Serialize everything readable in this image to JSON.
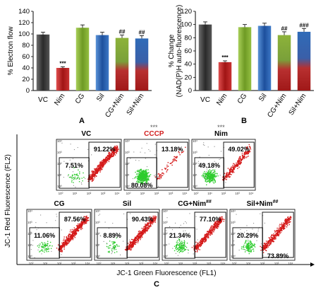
{
  "chart_data": [
    {
      "panel": "A",
      "type": "bar",
      "ylabel": "% Electron flow",
      "ylim": [
        0,
        140
      ],
      "yticks": [
        0,
        20,
        40,
        60,
        80,
        100,
        120,
        140
      ],
      "categories": [
        "VC",
        "Nim",
        "CG",
        "Sil",
        "CG+Nim",
        "Sil+Nim"
      ],
      "values": [
        99,
        40,
        111,
        98,
        93,
        92
      ],
      "errors": [
        4,
        2,
        5,
        5,
        5,
        5
      ],
      "annotations": [
        "",
        "***",
        "",
        "",
        "##",
        "##"
      ],
      "colors": [
        "#3f3f3f",
        "#b22222",
        "#8db33a",
        "#2f6bb8",
        "gradient-green-red",
        "gradient-blue-red"
      ]
    },
    {
      "panel": "B",
      "type": "bar",
      "ylabel": "% Change (NAD(P)H auto-fluorescence)",
      "ylim": [
        0,
        120
      ],
      "yticks": [
        0,
        20,
        40,
        60,
        80,
        100,
        120
      ],
      "categories": [
        "VC",
        "Nim",
        "CG",
        "Sil",
        "CG+Nim",
        "Sil+Nim"
      ],
      "values": [
        100,
        43,
        96,
        98,
        84,
        89
      ],
      "errors": [
        4,
        2,
        4,
        4,
        5,
        5
      ],
      "annotations": [
        "",
        "***",
        "",
        "",
        "##",
        "###"
      ],
      "colors": [
        "#3f3f3f",
        "#b22222",
        "#8db33a",
        "#2f6bb8",
        "gradient-green-red",
        "gradient-blue-red"
      ]
    },
    {
      "panel": "C",
      "type": "scatter",
      "xlabel": "JC-1 Green Fluorescence (FL1)",
      "ylabel": "JC-1 Red Fluorescence (FL2)",
      "tick_labels": [
        "10⁰",
        "10¹",
        "10²",
        "10³",
        "10⁴"
      ],
      "plots": [
        {
          "label": "VC",
          "label_mark": "",
          "stars": "",
          "red_pct": "91.22%",
          "green_pct": "7.51%",
          "red_gate": "upper-right",
          "green_gate": "lower-left",
          "label_color": "#000000"
        },
        {
          "label": "CCCP",
          "label_mark": "",
          "stars": "***",
          "red_pct": "13.18%",
          "green_pct": "80.08%",
          "red_gate": "upper-right",
          "green_gate": "lower-left",
          "label_color": "#d21e1e"
        },
        {
          "label": "Nim",
          "label_mark": "",
          "stars": "***",
          "red_pct": "49.02%",
          "green_pct": "49.18%",
          "red_gate": "upper-right",
          "green_gate": "lower-left",
          "label_color": "#000000"
        },
        {
          "label": "CG",
          "label_mark": "",
          "stars": "",
          "red_pct": "87.56%",
          "green_pct": "11.06%",
          "red_gate": "upper-right",
          "green_gate": "lower-left",
          "label_color": "#000000"
        },
        {
          "label": "Sil",
          "label_mark": "",
          "stars": "",
          "red_pct": "90.43%",
          "green_pct": "8.89%",
          "red_gate": "upper-right",
          "green_gate": "lower-left",
          "label_color": "#000000"
        },
        {
          "label": "CG+Nim",
          "label_mark": "##",
          "stars": "",
          "red_pct": "77.10%",
          "green_pct": "21.34%",
          "red_gate": "upper-right",
          "green_gate": "lower-left",
          "label_color": "#000000"
        },
        {
          "label": "Sil+Nim",
          "label_mark": "##",
          "stars": "",
          "red_pct": "73.89%",
          "green_pct": "20.29%",
          "red_gate": "upper-right",
          "green_gate": "lower-left",
          "label_color": "#000000"
        }
      ]
    }
  ]
}
